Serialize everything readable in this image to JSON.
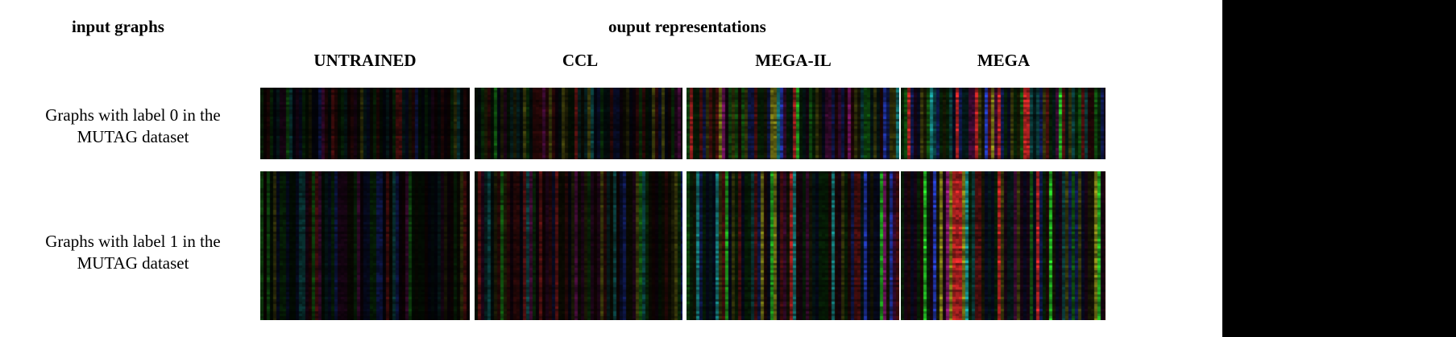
{
  "headers": {
    "input": "input graphs",
    "output": "ouput representations"
  },
  "methods": [
    "UNTRAINED",
    "CCL",
    "MEGA-IL",
    "MEGA"
  ],
  "rows": [
    {
      "label": "Graphs with label 0 in the MUTAG dataset"
    },
    {
      "label": "Graphs with label 1 in the MUTAG dataset"
    }
  ],
  "colors": {
    "background": "#ffffff",
    "panel_background": "#0a0a0a",
    "channels": [
      "#ff3030",
      "#30ff30",
      "#3050ff",
      "#20c0c0",
      "#c020a0",
      "#b0b020"
    ]
  },
  "panel_intensity": {
    "UNTRAINED": 0.28,
    "CCL": 0.38,
    "MEGA-IL": 0.72,
    "MEGA": 0.85
  }
}
